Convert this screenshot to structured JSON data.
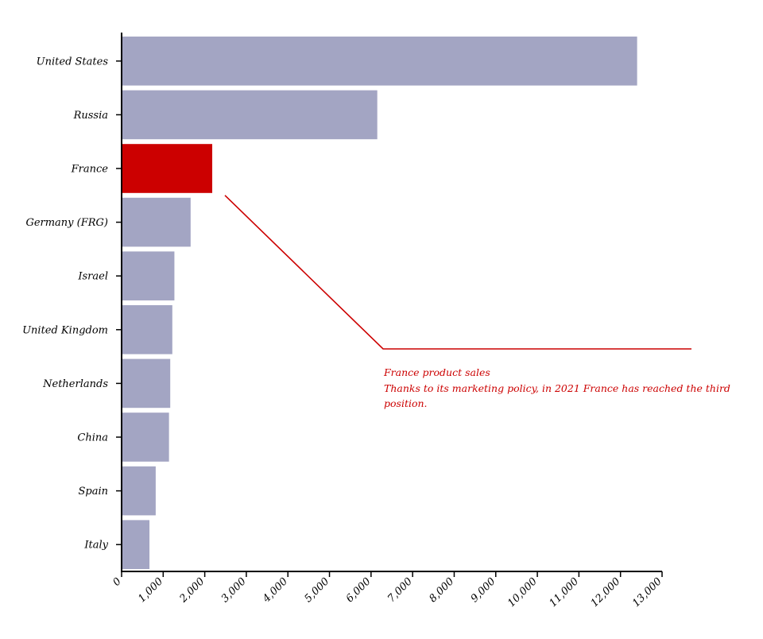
{
  "chart_data": {
    "type": "bar",
    "orientation": "horizontal",
    "categories": [
      "United States",
      "Russia",
      "France",
      "Germany (FRG)",
      "Israel",
      "United Kingdom",
      "Netherlands",
      "China",
      "Spain",
      "Italy"
    ],
    "values": [
      12400,
      6150,
      2180,
      1660,
      1270,
      1220,
      1170,
      1140,
      820,
      670
    ],
    "highlight": "France",
    "xlim": [
      0,
      13000
    ],
    "x_ticks": [
      "0",
      "1,000",
      "2,000",
      "3,000",
      "4,000",
      "5,000",
      "6,000",
      "7,000",
      "8,000",
      "9,000",
      "10,000",
      "11,000",
      "12,000",
      "13,000"
    ],
    "grid": false,
    "colors": {
      "bar": "#a3a5c3",
      "highlight": "#cc0000",
      "axis": "#000000"
    },
    "annotation": {
      "target": "France",
      "lines": [
        "France product sales",
        "Thanks to its marketing policy, in 2021 France has reached the third",
        "position."
      ]
    }
  }
}
